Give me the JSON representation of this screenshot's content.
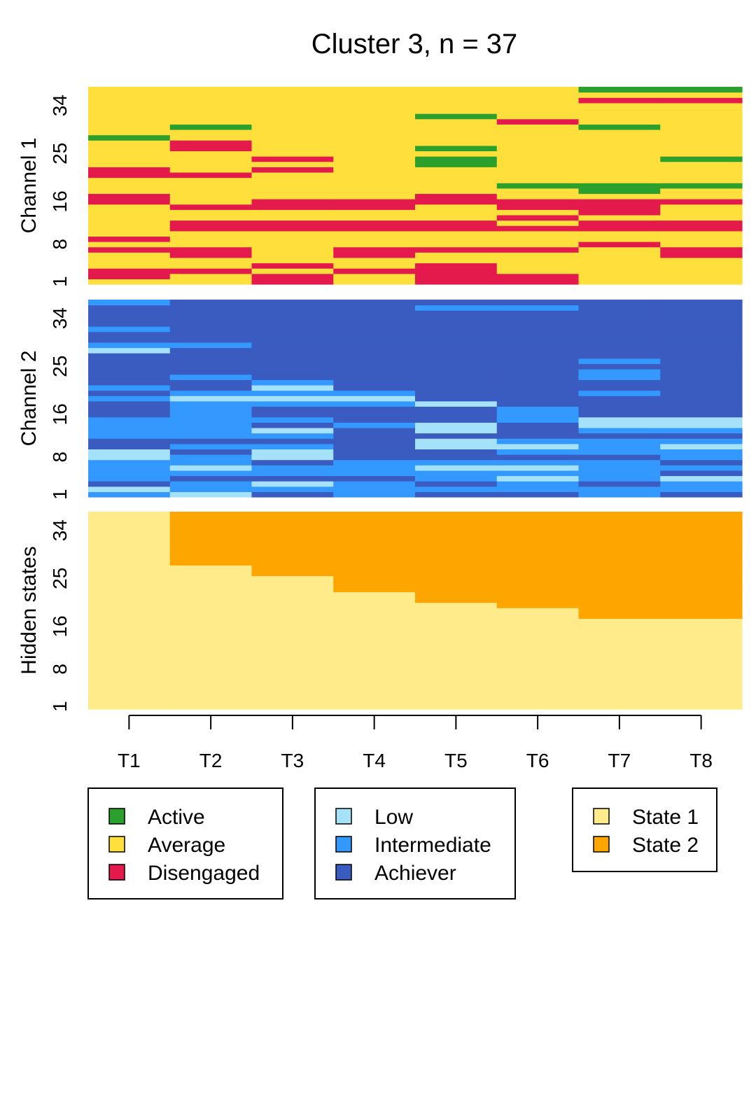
{
  "chart_data": {
    "type": "heatmap",
    "title": "Cluster 3, n = 37",
    "x_categories": [
      "T1",
      "T2",
      "T3",
      "T4",
      "T5",
      "T6",
      "T7",
      "T8"
    ],
    "y_ticks": [
      "1",
      "8",
      "16",
      "25",
      "34"
    ],
    "n_sequences": 37,
    "panels": [
      {
        "name": "Channel 1",
        "states": [
          "Active",
          "Average",
          "Disengaged"
        ],
        "colors": {
          "Active": "#2ca02c",
          "Average": "#ffdf3b",
          "Disengaged": "#e31a4b"
        },
        "sequences": [
          [
            "Average",
            "Average",
            "Disengaged",
            "Average",
            "Disengaged",
            "Disengaged",
            "Average",
            "Average"
          ],
          [
            "Disengaged",
            "Average",
            "Disengaged",
            "Average",
            "Disengaged",
            "Disengaged",
            "Average",
            "Average"
          ],
          [
            "Disengaged",
            "Disengaged",
            "Average",
            "Disengaged",
            "Disengaged",
            "Average",
            "Average",
            "Average"
          ],
          [
            "Average",
            "Average",
            "Disengaged",
            "Average",
            "Disengaged",
            "Average",
            "Average",
            "Average"
          ],
          [
            "Average",
            "Average",
            "Average",
            "Average",
            "Average",
            "Average",
            "Average",
            "Average"
          ],
          [
            "Average",
            "Disengaged",
            "Average",
            "Disengaged",
            "Average",
            "Average",
            "Average",
            "Disengaged"
          ],
          [
            "Disengaged",
            "Disengaged",
            "Average",
            "Disengaged",
            "Disengaged",
            "Disengaged",
            "Average",
            "Disengaged"
          ],
          [
            "Average",
            "Average",
            "Average",
            "Average",
            "Average",
            "Average",
            "Disengaged",
            "Average"
          ],
          [
            "Disengaged",
            "Average",
            "Average",
            "Average",
            "Average",
            "Average",
            "Average",
            "Average"
          ],
          [
            "Average",
            "Average",
            "Average",
            "Average",
            "Average",
            "Average",
            "Average",
            "Average"
          ],
          [
            "Average",
            "Disengaged",
            "Disengaged",
            "Disengaged",
            "Disengaged",
            "Disengaged",
            "Disengaged",
            "Disengaged"
          ],
          [
            "Average",
            "Disengaged",
            "Disengaged",
            "Disengaged",
            "Disengaged",
            "Average",
            "Disengaged",
            "Disengaged"
          ],
          [
            "Average",
            "Average",
            "Average",
            "Average",
            "Average",
            "Disengaged",
            "Average",
            "Average"
          ],
          [
            "Average",
            "Average",
            "Average",
            "Average",
            "Average",
            "Average",
            "Disengaged",
            "Average"
          ],
          [
            "Average",
            "Disengaged",
            "Disengaged",
            "Disengaged",
            "Average",
            "Disengaged",
            "Disengaged",
            "Average"
          ],
          [
            "Disengaged",
            "Average",
            "Disengaged",
            "Disengaged",
            "Disengaged",
            "Disengaged",
            "Disengaged",
            "Disengaged"
          ],
          [
            "Disengaged",
            "Average",
            "Average",
            "Average",
            "Disengaged",
            "Average",
            "Average",
            "Average"
          ],
          [
            "Average",
            "Average",
            "Average",
            "Average",
            "Average",
            "Average",
            "Active",
            "Average"
          ],
          [
            "Average",
            "Average",
            "Average",
            "Average",
            "Average",
            "Active",
            "Active",
            "Active"
          ],
          [
            "Average",
            "Average",
            "Average",
            "Average",
            "Average",
            "Average",
            "Average",
            "Average"
          ],
          [
            "Disengaged",
            "Disengaged",
            "Average",
            "Average",
            "Average",
            "Average",
            "Average",
            "Average"
          ],
          [
            "Disengaged",
            "Average",
            "Disengaged",
            "Average",
            "Average",
            "Average",
            "Average",
            "Average"
          ],
          [
            "Average",
            "Average",
            "Average",
            "Average",
            "Active",
            "Average",
            "Average",
            "Average"
          ],
          [
            "Average",
            "Average",
            "Disengaged",
            "Average",
            "Active",
            "Average",
            "Average",
            "Active"
          ],
          [
            "Average",
            "Average",
            "Average",
            "Average",
            "Average",
            "Average",
            "Average",
            "Average"
          ],
          [
            "Average",
            "Disengaged",
            "Average",
            "Average",
            "Active",
            "Average",
            "Average",
            "Average"
          ],
          [
            "Average",
            "Disengaged",
            "Average",
            "Average",
            "Average",
            "Average",
            "Average",
            "Average"
          ],
          [
            "Active",
            "Average",
            "Average",
            "Average",
            "Average",
            "Average",
            "Average",
            "Average"
          ],
          [
            "Average",
            "Average",
            "Average",
            "Average",
            "Average",
            "Average",
            "Average",
            "Average"
          ],
          [
            "Average",
            "Active",
            "Average",
            "Average",
            "Average",
            "Average",
            "Active",
            "Average"
          ],
          [
            "Average",
            "Average",
            "Average",
            "Average",
            "Average",
            "Disengaged",
            "Average",
            "Average"
          ],
          [
            "Average",
            "Average",
            "Average",
            "Average",
            "Active",
            "Average",
            "Average",
            "Average"
          ],
          [
            "Average",
            "Average",
            "Average",
            "Average",
            "Average",
            "Average",
            "Average",
            "Average"
          ],
          [
            "Average",
            "Average",
            "Average",
            "Average",
            "Average",
            "Average",
            "Average",
            "Average"
          ],
          [
            "Average",
            "Average",
            "Average",
            "Average",
            "Average",
            "Average",
            "Disengaged",
            "Disengaged"
          ],
          [
            "Average",
            "Average",
            "Average",
            "Average",
            "Average",
            "Average",
            "Average",
            "Average"
          ],
          [
            "Average",
            "Average",
            "Average",
            "Average",
            "Average",
            "Average",
            "Active",
            "Active"
          ]
        ]
      },
      {
        "name": "Channel 2",
        "states": [
          "Low",
          "Intermediate",
          "Achiever"
        ],
        "colors": {
          "Low": "#a6e1fa",
          "Intermediate": "#3399ff",
          "Achiever": "#3a5bbf"
        },
        "sequences": [
          [
            "Intermediate",
            "Low",
            "Achiever",
            "Intermediate",
            "Achiever",
            "Achiever",
            "Intermediate",
            "Achiever"
          ],
          [
            "Low",
            "Intermediate",
            "Intermediate",
            "Intermediate",
            "Intermediate",
            "Intermediate",
            "Intermediate",
            "Intermediate"
          ],
          [
            "Achiever",
            "Intermediate",
            "Low",
            "Intermediate",
            "Achiever",
            "Intermediate",
            "Achiever",
            "Intermediate"
          ],
          [
            "Intermediate",
            "Achiever",
            "Achiever",
            "Achiever",
            "Intermediate",
            "Low",
            "Intermediate",
            "Low"
          ],
          [
            "Intermediate",
            "Intermediate",
            "Intermediate",
            "Intermediate",
            "Intermediate",
            "Intermediate",
            "Intermediate",
            "Achiever"
          ],
          [
            "Intermediate",
            "Low",
            "Intermediate",
            "Intermediate",
            "Low",
            "Low",
            "Intermediate",
            "Intermediate"
          ],
          [
            "Intermediate",
            "Intermediate",
            "Achiever",
            "Intermediate",
            "Intermediate",
            "Intermediate",
            "Intermediate",
            "Achiever"
          ],
          [
            "Low",
            "Intermediate",
            "Low",
            "Achiever",
            "Achiever",
            "Achiever",
            "Achiever",
            "Intermediate"
          ],
          [
            "Low",
            "Achiever",
            "Low",
            "Achiever",
            "Achiever",
            "Intermediate",
            "Intermediate",
            "Intermediate"
          ],
          [
            "Achiever",
            "Intermediate",
            "Intermediate",
            "Achiever",
            "Low",
            "Low",
            "Intermediate",
            "Low"
          ],
          [
            "Achiever",
            "Achiever",
            "Achiever",
            "Achiever",
            "Low",
            "Intermediate",
            "Intermediate",
            "Intermediate"
          ],
          [
            "Intermediate",
            "Intermediate",
            "Intermediate",
            "Achiever",
            "Achiever",
            "Achiever",
            "Achiever",
            "Achiever"
          ],
          [
            "Intermediate",
            "Intermediate",
            "Low",
            "Achiever",
            "Low",
            "Achiever",
            "Intermediate",
            "Intermediate"
          ],
          [
            "Intermediate",
            "Intermediate",
            "Achiever",
            "Intermediate",
            "Low",
            "Achiever",
            "Low",
            "Low"
          ],
          [
            "Intermediate",
            "Intermediate",
            "Intermediate",
            "Achiever",
            "Achiever",
            "Intermediate",
            "Low",
            "Low"
          ],
          [
            "Achiever",
            "Intermediate",
            "Achiever",
            "Achiever",
            "Achiever",
            "Intermediate",
            "Achiever",
            "Achiever"
          ],
          [
            "Achiever",
            "Intermediate",
            "Achiever",
            "Achiever",
            "Achiever",
            "Intermediate",
            "Achiever",
            "Achiever"
          ],
          [
            "Achiever",
            "Intermediate",
            "Intermediate",
            "Intermediate",
            "Low",
            "Achiever",
            "Achiever",
            "Achiever"
          ],
          [
            "Intermediate",
            "Low",
            "Low",
            "Low",
            "Achiever",
            "Achiever",
            "Achiever",
            "Achiever"
          ],
          [
            "Achiever",
            "Intermediate",
            "Intermediate",
            "Intermediate",
            "Achiever",
            "Achiever",
            "Intermediate",
            "Achiever"
          ],
          [
            "Intermediate",
            "Achiever",
            "Low",
            "Achiever",
            "Achiever",
            "Achiever",
            "Achiever",
            "Achiever"
          ],
          [
            "Achiever",
            "Achiever",
            "Intermediate",
            "Achiever",
            "Achiever",
            "Achiever",
            "Achiever",
            "Achiever"
          ],
          [
            "Achiever",
            "Intermediate",
            "Achiever",
            "Achiever",
            "Achiever",
            "Achiever",
            "Intermediate",
            "Achiever"
          ],
          [
            "Achiever",
            "Achiever",
            "Achiever",
            "Achiever",
            "Achiever",
            "Achiever",
            "Intermediate",
            "Achiever"
          ],
          [
            "Achiever",
            "Achiever",
            "Achiever",
            "Achiever",
            "Achiever",
            "Achiever",
            "Achiever",
            "Achiever"
          ],
          [
            "Achiever",
            "Achiever",
            "Achiever",
            "Achiever",
            "Achiever",
            "Achiever",
            "Intermediate",
            "Achiever"
          ],
          [
            "Achiever",
            "Achiever",
            "Achiever",
            "Achiever",
            "Achiever",
            "Achiever",
            "Achiever",
            "Achiever"
          ],
          [
            "Low",
            "Achiever",
            "Achiever",
            "Achiever",
            "Achiever",
            "Achiever",
            "Achiever",
            "Achiever"
          ],
          [
            "Intermediate",
            "Intermediate",
            "Achiever",
            "Achiever",
            "Achiever",
            "Achiever",
            "Achiever",
            "Achiever"
          ],
          [
            "Achiever",
            "Achiever",
            "Achiever",
            "Achiever",
            "Achiever",
            "Achiever",
            "Achiever",
            "Achiever"
          ],
          [
            "Achiever",
            "Achiever",
            "Achiever",
            "Achiever",
            "Achiever",
            "Achiever",
            "Achiever",
            "Achiever"
          ],
          [
            "Intermediate",
            "Achiever",
            "Achiever",
            "Achiever",
            "Achiever",
            "Achiever",
            "Achiever",
            "Achiever"
          ],
          [
            "Achiever",
            "Achiever",
            "Achiever",
            "Achiever",
            "Achiever",
            "Achiever",
            "Achiever",
            "Achiever"
          ],
          [
            "Achiever",
            "Achiever",
            "Achiever",
            "Achiever",
            "Achiever",
            "Achiever",
            "Achiever",
            "Achiever"
          ],
          [
            "Achiever",
            "Achiever",
            "Achiever",
            "Achiever",
            "Achiever",
            "Achiever",
            "Achiever",
            "Achiever"
          ],
          [
            "Achiever",
            "Achiever",
            "Achiever",
            "Achiever",
            "Intermediate",
            "Intermediate",
            "Achiever",
            "Achiever"
          ],
          [
            "Intermediate",
            "Achiever",
            "Achiever",
            "Achiever",
            "Achiever",
            "Achiever",
            "Achiever",
            "Achiever"
          ]
        ]
      },
      {
        "name": "Hidden states",
        "states": [
          "State 1",
          "State 2"
        ],
        "colors": {
          "State 1": "#ffeb8a",
          "State 2": "#ffa500"
        },
        "sequences_rule": "row r (1 = bottom) is State 2 from column t onward when r exceeds threshold[t]",
        "state2_threshold_by_time": [
          37,
          27,
          25,
          22,
          20,
          19,
          17,
          17
        ]
      }
    ],
    "legends": [
      {
        "items": [
          {
            "label": "Active",
            "state": "Active"
          },
          {
            "label": "Average",
            "state": "Average"
          },
          {
            "label": "Disengaged",
            "state": "Disengaged"
          }
        ]
      },
      {
        "items": [
          {
            "label": "Low",
            "state": "Low"
          },
          {
            "label": "Intermediate",
            "state": "Intermediate"
          },
          {
            "label": "Achiever",
            "state": "Achiever"
          }
        ]
      },
      {
        "items": [
          {
            "label": "State 1",
            "state": "State 1"
          },
          {
            "label": "State 2",
            "state": "State 2"
          }
        ]
      }
    ]
  }
}
